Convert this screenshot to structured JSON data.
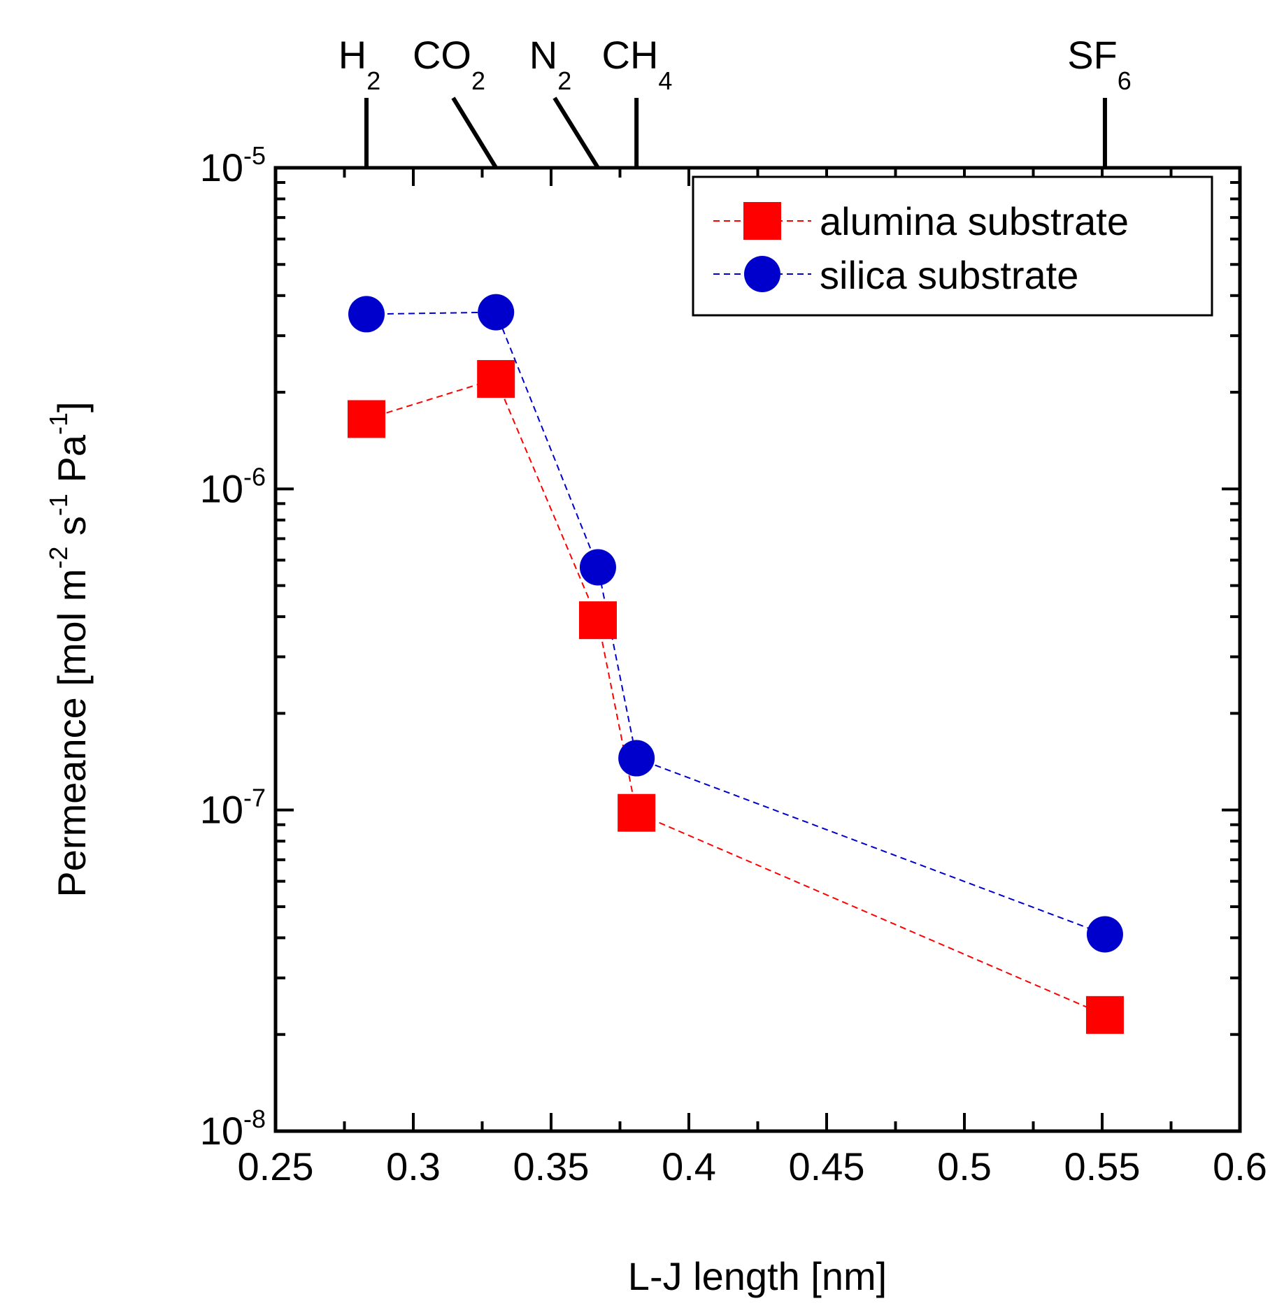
{
  "chart_data": {
    "type": "scatter",
    "xlabel": "L-J length [nm]",
    "ylabel": {
      "base": "Permeance [mol m",
      "exp1": "-2",
      "mid1": " s",
      "exp2": "-1",
      "mid2": " Pa",
      "exp3": "-1",
      "end": "]"
    },
    "xlim": [
      0.25,
      0.6
    ],
    "ylim": [
      1e-08,
      1e-05
    ],
    "yscale": "log",
    "x_ticks": [
      0.25,
      0.3,
      0.35,
      0.4,
      0.45,
      0.5,
      0.55,
      0.6
    ],
    "x_tick_labels": [
      "0.25",
      "0.3",
      "0.35",
      "0.4",
      "0.45",
      "0.5",
      "0.55",
      "0.6"
    ],
    "y_ticks": [
      {
        "value": 1e-05,
        "base": "10",
        "exp": "-5"
      },
      {
        "value": 1e-06,
        "base": "10",
        "exp": "-6"
      },
      {
        "value": 1e-07,
        "base": "10",
        "exp": "-7"
      },
      {
        "value": 1e-08,
        "base": "10",
        "exp": "-8"
      }
    ],
    "gases": [
      {
        "name": "H",
        "sub": "2",
        "x": 0.283
      },
      {
        "name": "CO",
        "sub": "2",
        "x": 0.33
      },
      {
        "name": "N",
        "sub": "2",
        "x": 0.367
      },
      {
        "name": "CH",
        "sub": "4",
        "x": 0.381
      },
      {
        "name": "SF",
        "sub": "6",
        "x": 0.551
      }
    ],
    "series": [
      {
        "name": "alumina substrate",
        "color": "#ff0000",
        "marker": "square",
        "x": [
          0.283,
          0.33,
          0.367,
          0.381,
          0.551
        ],
        "values": [
          1.65e-06,
          2.2e-06,
          3.9e-07,
          9.8e-08,
          2.3e-08
        ]
      },
      {
        "name": "silica substrate",
        "color": "#0000cc",
        "marker": "circle",
        "x": [
          0.283,
          0.33,
          0.367,
          0.381,
          0.551
        ],
        "values": [
          3.5e-06,
          3.55e-06,
          5.7e-07,
          1.45e-07,
          4.1e-08
        ]
      }
    ],
    "legend_position": "top-right",
    "grid": false
  }
}
